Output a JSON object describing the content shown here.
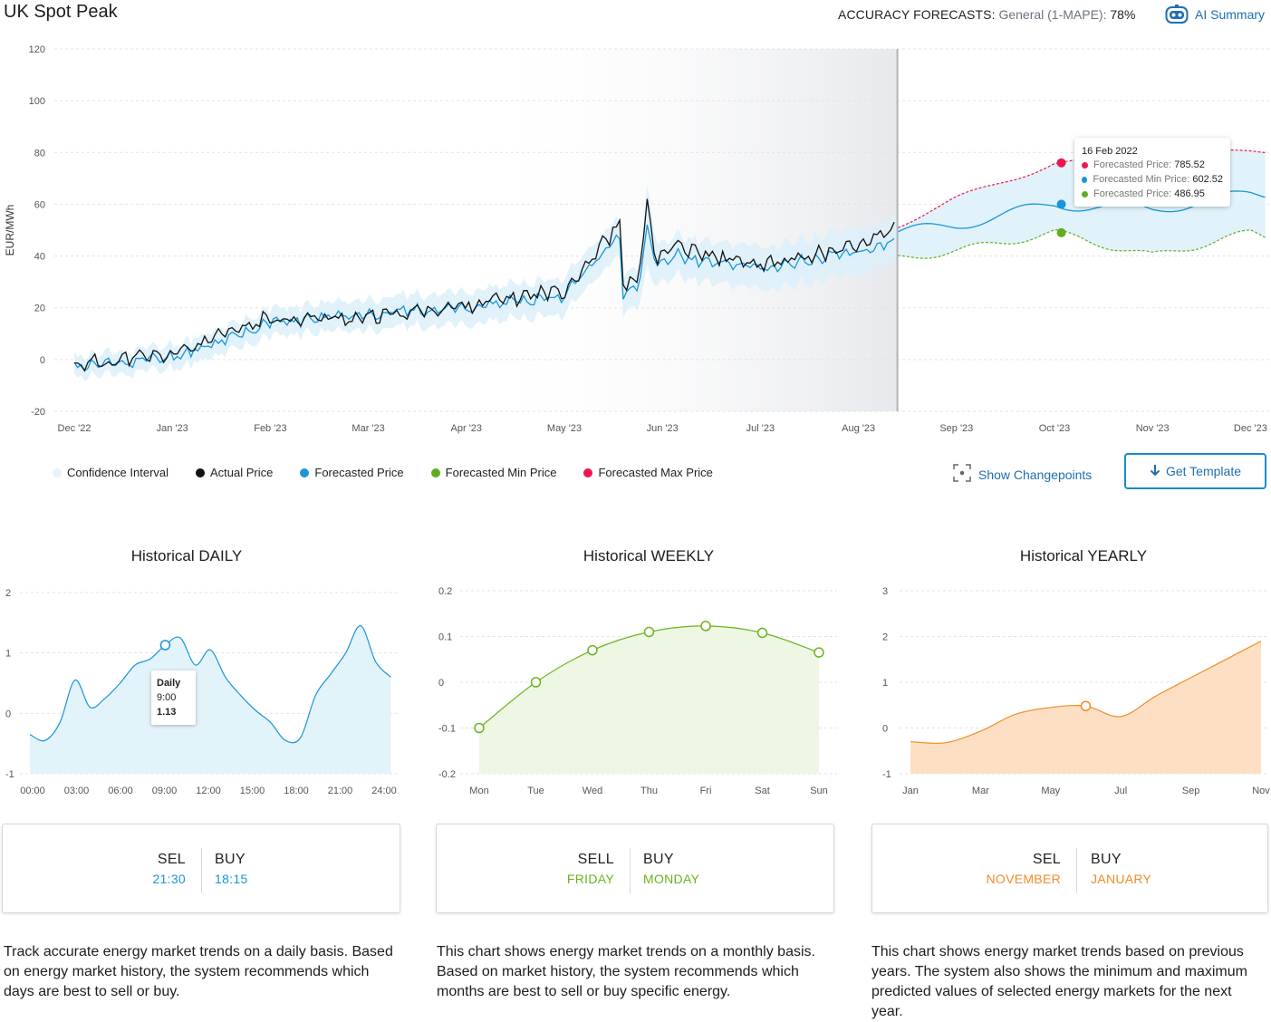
{
  "header": {
    "title": "UK Spot Peak",
    "accuracy_label": "ACCURACY FORECASTS:",
    "accuracy_metric": "General (1-MAPE):",
    "accuracy_value": "78%",
    "ai_summary": "AI Summary"
  },
  "legend": {
    "items": [
      {
        "label": "Confidence Interval",
        "color": "#e6f3fa"
      },
      {
        "label": "Actual Price",
        "color": "#111111"
      },
      {
        "label": "Forecasted Price",
        "color": "#1a96d8"
      },
      {
        "label": "Forecasted Min Price",
        "color": "#5fae1e"
      },
      {
        "label": "Forecasted Max Price",
        "color": "#f0154f"
      }
    ]
  },
  "actions": {
    "show_changepoints": "Show Changepoints",
    "get_template": "Get Template"
  },
  "tooltip_main": {
    "date": "16 Feb 2022",
    "rows": [
      {
        "label": "Forecasted Price:",
        "value": "785.52",
        "color": "#f0154f"
      },
      {
        "label": "Forecasted Min Price:",
        "value": "602.52",
        "color": "#1a96d8"
      },
      {
        "label": "Forecasted Price:",
        "value": "486.95",
        "color": "#5fae1e"
      }
    ]
  },
  "tooltip_daily": {
    "title": "Daily",
    "time": "9:00",
    "value": "1.13"
  },
  "chart_data": [
    {
      "type": "line",
      "title": "",
      "ylabel": "EUR/MWh",
      "ylim": [
        -20,
        120
      ],
      "yticks": [
        -20,
        0,
        20,
        40,
        60,
        80,
        100,
        120
      ],
      "xticks": [
        "Dec '22",
        "Jan '23",
        "Feb '23",
        "Mar '23",
        "Apr '23",
        "May '23",
        "Jun '23",
        "Jul '23",
        "Aug '23",
        "Sep '23",
        "Oct '23",
        "Nov '23",
        "Dec '23"
      ],
      "grid": true,
      "legend": "bottom",
      "history_x": [
        "Dec '22",
        "Dec '22",
        "Jan '23",
        "Jan '23",
        "Feb '23",
        "Feb '23",
        "Mar '23",
        "Mar '23",
        "Apr '23",
        "Apr '23",
        "May '23",
        "May '23",
        "Jun '23",
        "Jun '23",
        "Jul '23",
        "Jul '23",
        "Aug '23",
        "Aug '23"
      ],
      "series": [
        {
          "name": "Actual Price",
          "x": [
            "Dec '22",
            "Jan '23",
            "Feb '23",
            "Mar '23",
            "Apr '23",
            "May '23",
            "late May '23",
            "Jun '23",
            "Jul '23",
            "Aug '23",
            "end Aug '23"
          ],
          "values": [
            -2,
            2,
            16,
            16,
            21,
            27,
            63,
            44,
            36,
            44,
            52
          ]
        },
        {
          "name": "Forecasted Price",
          "x": [
            "Dec '22",
            "Jan '23",
            "Feb '23",
            "Mar '23",
            "Apr '23",
            "May '23",
            "late May '23",
            "Jun '23",
            "Jul '23",
            "Aug '23",
            "Sep '23",
            "Oct '23",
            "Nov '23",
            "Dec '23"
          ],
          "values": [
            -3,
            1,
            14,
            18,
            20,
            25,
            58,
            40,
            35,
            42,
            52,
            60,
            58,
            64
          ]
        },
        {
          "name": "Forecasted Min Price",
          "x": [
            "Aug '23",
            "Sep '23",
            "Oct '23",
            "Nov '23",
            "Dec '23"
          ],
          "values": [
            39,
            42,
            49,
            40,
            49
          ]
        },
        {
          "name": "Forecasted Max Price",
          "x": [
            "Aug '23",
            "Sep '23",
            "Oct '23",
            "Nov '23",
            "Dec '23"
          ],
          "values": [
            52,
            62,
            76,
            77,
            81
          ]
        }
      ],
      "forecast_start": "Aug '23"
    },
    {
      "type": "area",
      "title": "Historical DAILY",
      "ylim": [
        -1,
        2
      ],
      "yticks": [
        -1,
        0,
        1,
        2
      ],
      "xticks": [
        "00:00",
        "03:00",
        "06:00",
        "09:00",
        "12:00",
        "15:00",
        "18:00",
        "21:00",
        "24:00"
      ],
      "x_hours": [
        0,
        1,
        2,
        3,
        4,
        5,
        6,
        7,
        8,
        9,
        10,
        11,
        12,
        13,
        14,
        15,
        16,
        17,
        18,
        19,
        20,
        21,
        22,
        23,
        24
      ],
      "values": [
        -0.35,
        -0.45,
        -0.15,
        0.55,
        0.1,
        0.25,
        0.5,
        0.8,
        0.9,
        1.13,
        1.25,
        0.8,
        1.05,
        0.6,
        0.3,
        0.05,
        -0.15,
        -0.45,
        -0.4,
        0.3,
        0.65,
        1.0,
        1.45,
        0.85,
        0.6
      ],
      "color": "#1a96d8",
      "highlight": {
        "x": "9:00",
        "value": 1.13
      }
    },
    {
      "type": "area",
      "title": "Historical WEEKLY",
      "ylim": [
        -0.2,
        0.2
      ],
      "yticks": [
        -0.2,
        -0.1,
        0,
        0.1,
        0.2
      ],
      "categories": [
        "Mon",
        "Tue",
        "Wed",
        "Thu",
        "Fri",
        "Sat",
        "Sun"
      ],
      "values": [
        -0.1,
        0.0,
        0.07,
        0.11,
        0.123,
        0.108,
        0.065
      ],
      "color": "#6cb31e"
    },
    {
      "type": "area",
      "title": "Historical YEARLY",
      "ylim": [
        -1,
        3
      ],
      "yticks": [
        -1,
        0,
        1,
        2,
        3
      ],
      "xticks": [
        "Jan",
        "Mar",
        "May",
        "Jul",
        "Sep",
        "Nov"
      ],
      "x_months": [
        1,
        2,
        3,
        4,
        5,
        6,
        7,
        8,
        9,
        10,
        11
      ],
      "values": [
        -0.3,
        -0.32,
        -0.07,
        0.3,
        0.45,
        0.48,
        0.25,
        0.7,
        1.1,
        1.5,
        1.9
      ],
      "color": "#f28c28",
      "highlight": {
        "x": "Jun",
        "value": 0.48
      }
    }
  ],
  "panels": [
    {
      "sell_label": "SEL",
      "sell_value": "21:30",
      "buy_label": "BUY",
      "buy_value": "18:15",
      "color": "#1a96d8",
      "description": "Track accurate energy market trends on a daily basis. Based on energy market history, the system recommends which days are best to sell or buy."
    },
    {
      "sell_label": "SELL",
      "sell_value": "FRIDAY",
      "buy_label": "BUY",
      "buy_value": "MONDAY",
      "color": "#6cb31e",
      "description": "This chart shows energy market trends on a monthly basis. Based on market history, the system recommends which months are best to sell or buy specific energy."
    },
    {
      "sell_label": "SEL",
      "sell_value": "NOVEMBER",
      "buy_label": "BUY",
      "buy_value": "JANUARY",
      "color": "#f28c28",
      "description": "This chart shows energy market trends based on previous years. The system also shows the minimum and maximum predicted values of selected energy markets for the next year."
    }
  ]
}
